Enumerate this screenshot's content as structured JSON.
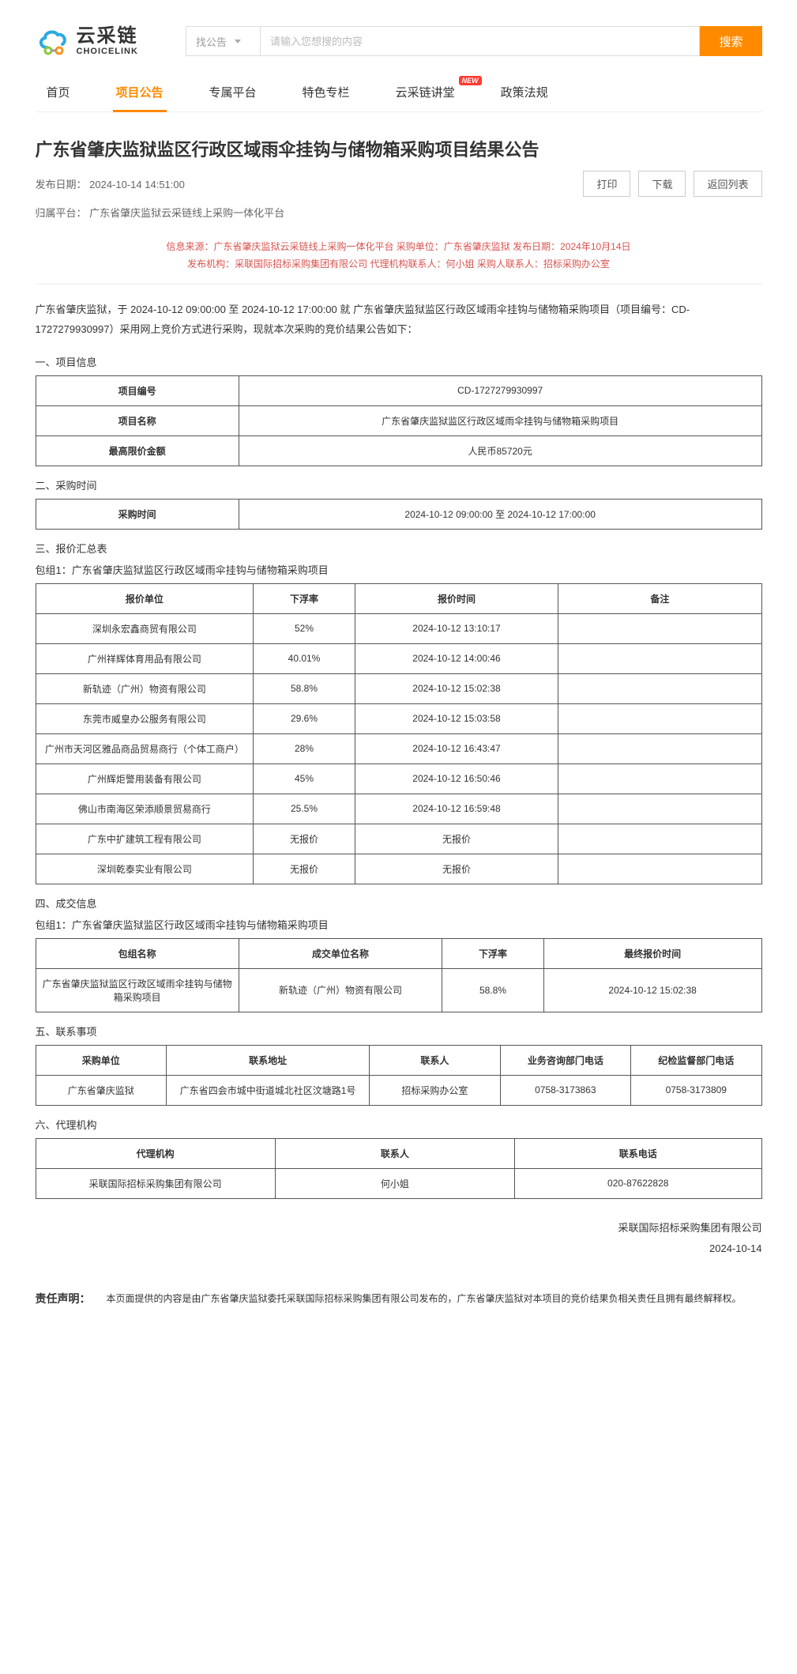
{
  "logo": {
    "cn": "云采链",
    "en": "CHOICELINK"
  },
  "search": {
    "select": "找公告",
    "placeholder": "请输入您想搜的内容",
    "btn": "搜索"
  },
  "nav": [
    {
      "label": "首页",
      "active": false
    },
    {
      "label": "项目公告",
      "active": true
    },
    {
      "label": "专属平台",
      "active": false
    },
    {
      "label": "特色专栏",
      "active": false
    },
    {
      "label": "云采链讲堂",
      "active": false,
      "badge": "NEW"
    },
    {
      "label": "政策法规",
      "active": false
    }
  ],
  "article": {
    "title": "广东省肇庆监狱监区行政区域雨伞挂钩与储物箱采购项目结果公告",
    "publish_date_label": "发布日期：",
    "publish_date": "2024-10-14 14:51:00",
    "platform_label": "归属平台：",
    "platform": "广东省肇庆监狱云采链线上采购一体化平台",
    "btn_print": "打印",
    "btn_download": "下载",
    "btn_back": "返回列表",
    "red1": "信息来源：广东省肇庆监狱云采链线上采购一体化平台   采购单位：广东省肇庆监狱   发布日期：2024年10月14日",
    "red2": "发布机构：采联国际招标采购集团有限公司   代理机构联系人：何小姐   采购人联系人：招标采购办公室",
    "intro": "广东省肇庆监狱，于 2024-10-12 09:00:00 至 2024-10-12 17:00:00 就 广东省肇庆监狱监区行政区域雨伞挂钩与储物箱采购项目（项目编号：CD-1727279930997）采用网上竞价方式进行采购，现就本次采购的竞价结果公告如下："
  },
  "sec1": {
    "title": "一、项目信息",
    "rows": [
      {
        "k": "项目编号",
        "v": "CD-1727279930997"
      },
      {
        "k": "项目名称",
        "v": "广东省肇庆监狱监区行政区域雨伞挂钩与储物箱采购项目"
      },
      {
        "k": "最高限价金额",
        "v": "人民币85720元"
      }
    ]
  },
  "sec2": {
    "title": "二、采购时间",
    "row": {
      "k": "采购时间",
      "v": "2024-10-12 09:00:00 至 2024-10-12 17:00:00"
    }
  },
  "sec3": {
    "title": "三、报价汇总表",
    "sub": "包组1：广东省肇庆监狱监区行政区域雨伞挂钩与储物箱采购项目",
    "headers": [
      "报价单位",
      "下浮率",
      "报价时间",
      "备注"
    ],
    "rows": [
      [
        "深圳永宏鑫商贸有限公司",
        "52%",
        "2024-10-12 13:10:17",
        ""
      ],
      [
        "广州祥辉体育用品有限公司",
        "40.01%",
        "2024-10-12 14:00:46",
        ""
      ],
      [
        "新轨迹（广州）物资有限公司",
        "58.8%",
        "2024-10-12 15:02:38",
        ""
      ],
      [
        "东莞市威皇办公服务有限公司",
        "29.6%",
        "2024-10-12 15:03:58",
        ""
      ],
      [
        "广州市天河区雅品商品贸易商行（个体工商户）",
        "28%",
        "2024-10-12 16:43:47",
        ""
      ],
      [
        "广州辉炬警用装备有限公司",
        "45%",
        "2024-10-12 16:50:46",
        ""
      ],
      [
        "佛山市南海区荣添顺景贸易商行",
        "25.5%",
        "2024-10-12 16:59:48",
        ""
      ],
      [
        "广东中扩建筑工程有限公司",
        "无报价",
        "无报价",
        ""
      ],
      [
        "深圳乾泰实业有限公司",
        "无报价",
        "无报价",
        ""
      ]
    ]
  },
  "sec4": {
    "title": "四、成交信息",
    "sub": "包组1：广东省肇庆监狱监区行政区域雨伞挂钩与储物箱采购项目",
    "headers": [
      "包组名称",
      "成交单位名称",
      "下浮率",
      "最终报价时间"
    ],
    "rows": [
      [
        "广东省肇庆监狱监区行政区域雨伞挂钩与储物箱采购项目",
        "新轨迹（广州）物资有限公司",
        "58.8%",
        "2024-10-12 15:02:38"
      ]
    ]
  },
  "sec5": {
    "title": "五、联系事项",
    "headers": [
      "采购单位",
      "联系地址",
      "联系人",
      "业务咨询部门电话",
      "纪检监督部门电话"
    ],
    "rows": [
      [
        "广东省肇庆监狱",
        "广东省四会市城中街道城北社区汶塘路1号",
        "招标采购办公室",
        "0758-3173863",
        "0758-3173809"
      ]
    ]
  },
  "sec6": {
    "title": "六、代理机构",
    "headers": [
      "代理机构",
      "联系人",
      "联系电话"
    ],
    "rows": [
      [
        "采联国际招标采购集团有限公司",
        "何小姐",
        "020-87622828"
      ]
    ]
  },
  "sign": {
    "org": "采联国际招标采购集团有限公司",
    "date": "2024-10-14"
  },
  "disclaimer": {
    "label": "责任声明：",
    "text": "本页面提供的内容是由广东省肇庆监狱委托采联国际招标采购集团有限公司发布的，广东省肇庆监狱对本项目的竞价结果负相关责任且拥有最终解释权。"
  }
}
